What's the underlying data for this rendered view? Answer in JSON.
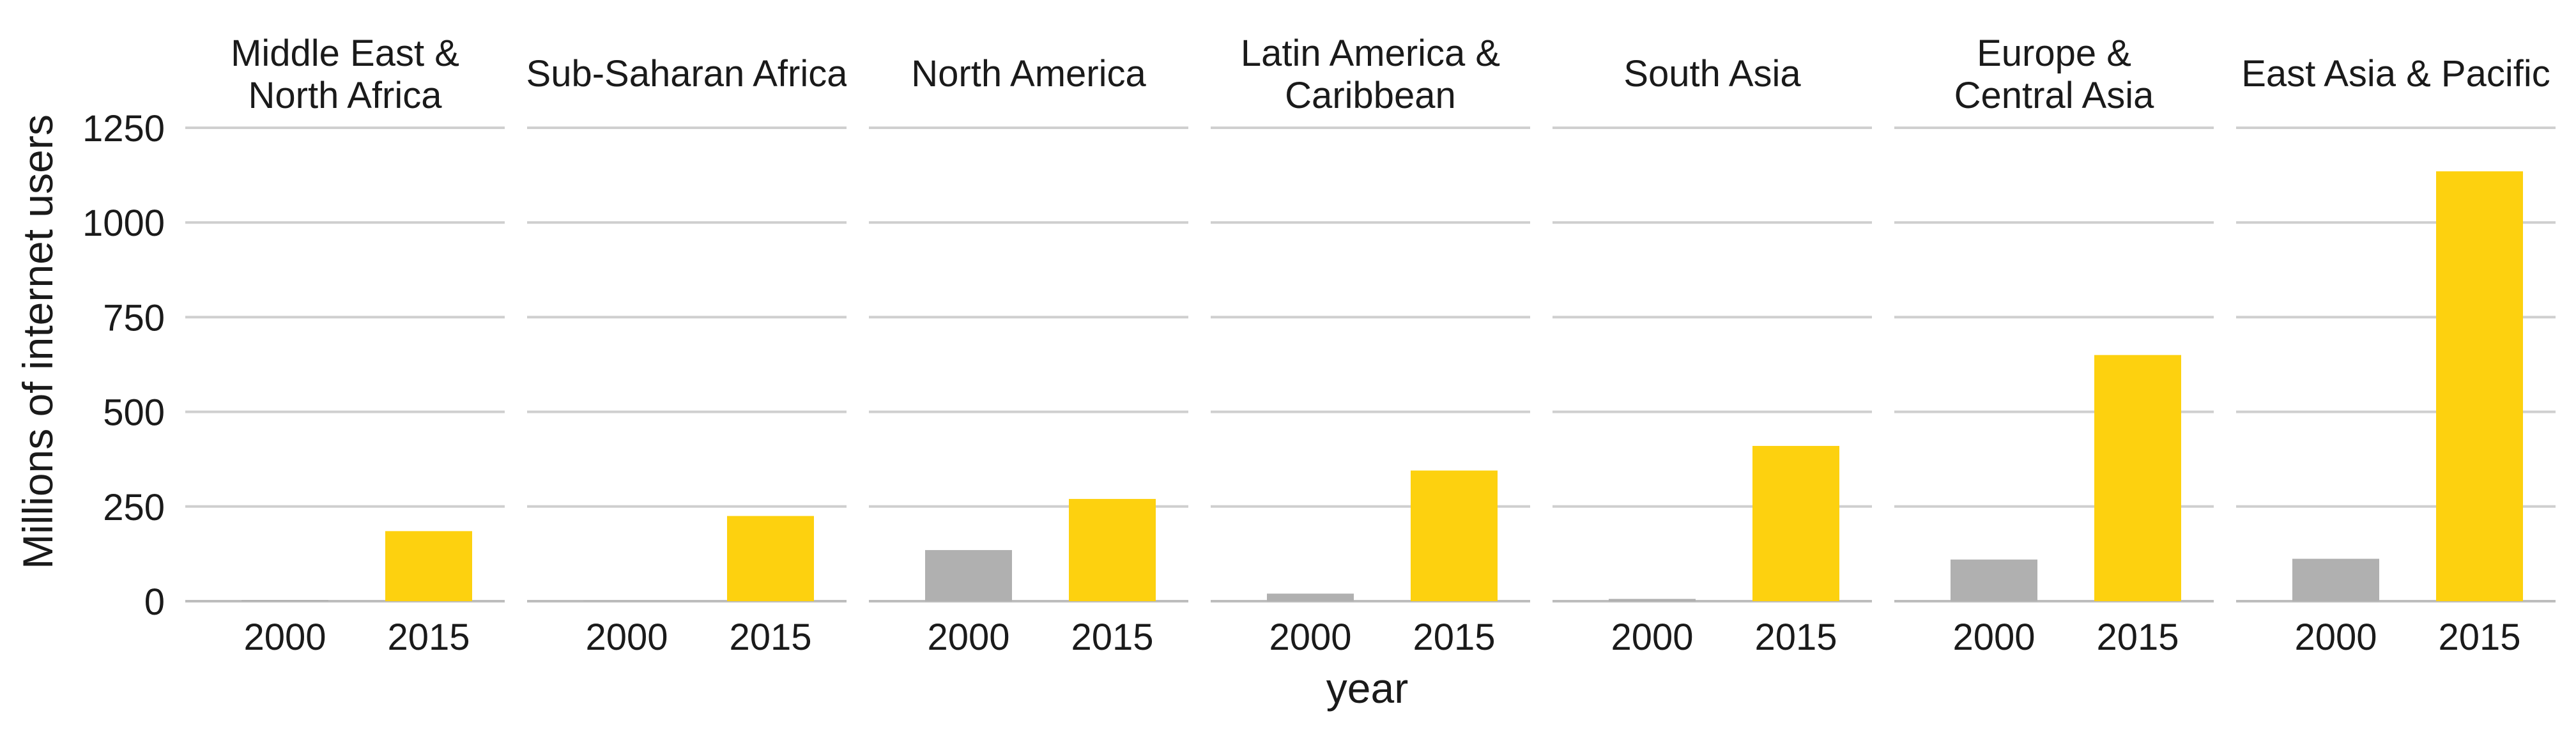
{
  "chart_data": {
    "type": "bar",
    "xlabel": "year",
    "ylabel": "Millions of internet users",
    "ylim": [
      0,
      1250
    ],
    "yticks": [
      0,
      250,
      500,
      750,
      1000,
      1250
    ],
    "categories": [
      "2000",
      "2015"
    ],
    "grid": "horizontal",
    "colors": {
      "2000": "#b0b0b0",
      "2015": "#fdd10f"
    },
    "facets": [
      {
        "title": "Middle East &\nNorth Africa",
        "values": [
          3,
          185
        ]
      },
      {
        "title": "Sub-Saharan Africa",
        "values": [
          1,
          225
        ]
      },
      {
        "title": "North America",
        "values": [
          135,
          270
        ]
      },
      {
        "title": "Latin America &\nCaribbean",
        "values": [
          20,
          345
        ]
      },
      {
        "title": "South Asia",
        "values": [
          6,
          410
        ]
      },
      {
        "title": "Europe &\nCentral Asia",
        "values": [
          110,
          650
        ]
      },
      {
        "title": "East Asia & Pacific",
        "values": [
          112,
          1135
        ]
      }
    ]
  }
}
